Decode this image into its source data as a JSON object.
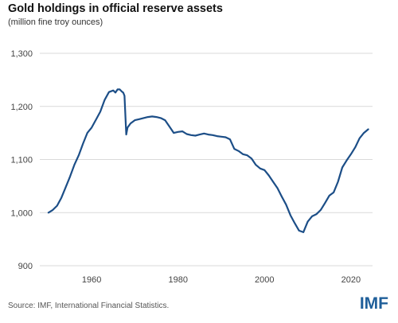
{
  "header": {
    "title": "Gold holdings in official reserve assets",
    "subtitle": "(million fine troy ounces)"
  },
  "footer": {
    "source": "Source: IMF, International Financial Statistics.",
    "logo": "IMF"
  },
  "colors": {
    "line": "#1c4e87",
    "grid": "#d9d9d9",
    "axis_text": "#444444",
    "logo": "#1f5f9a"
  },
  "chart_data": {
    "type": "line",
    "title": "Gold holdings in official reserve assets",
    "subtitle": "(million fine troy ounces)",
    "xlabel": "",
    "ylabel": "",
    "xlim": [
      1948,
      2025
    ],
    "ylim": [
      900,
      1300
    ],
    "y_ticks": [
      900,
      1000,
      1100,
      1200,
      1300
    ],
    "y_tick_labels": [
      "900",
      "1,000",
      "1,100",
      "1,200",
      "1,300"
    ],
    "x_ticks": [
      1960,
      1980,
      2000,
      2020
    ],
    "x_tick_labels": [
      "1960",
      "1980",
      "2000",
      "2020"
    ],
    "grid": "horizontal",
    "series": [
      {
        "x": [
          1950.0,
          1951.0,
          1952.0,
          1953.0,
          1954.0,
          1955.0,
          1956.0,
          1957.0,
          1958.0,
          1959.0,
          1960.0,
          1961.0,
          1962.0,
          1963.0,
          1964.0,
          1965.0,
          1965.5,
          1966.0,
          1966.5,
          1967.0,
          1967.3,
          1967.6,
          1968.0,
          1968.3,
          1969.0,
          1970.0,
          1971.0,
          1972.0,
          1973.0,
          1974.0,
          1975.0,
          1976.0,
          1977.0,
          1978.0,
          1979.0,
          1980.0,
          1981.0,
          1982.0,
          1983.0,
          1984.0,
          1985.0,
          1986.0,
          1987.0,
          1988.0,
          1989.0,
          1990.0,
          1991.0,
          1992.0,
          1993.0,
          1994.0,
          1995.0,
          1996.0,
          1997.0,
          1998.0,
          1999.0,
          2000.0,
          2001.0,
          2002.0,
          2003.0,
          2004.0,
          2005.0,
          2006.0,
          2007.0,
          2008.0,
          2009.0,
          2010.0,
          2011.0,
          2012.0,
          2013.0,
          2014.0,
          2015.0,
          2016.0,
          2017.0,
          2018.0,
          2019.0,
          2020.0,
          2021.0,
          2022.0,
          2023.0,
          2024.0
        ],
        "values": [
          1000,
          1005,
          1013,
          1028,
          1048,
          1068,
          1090,
          1108,
          1130,
          1150,
          1160,
          1175,
          1190,
          1212,
          1227,
          1230,
          1226,
          1232,
          1232,
          1228,
          1226,
          1220,
          1147,
          1160,
          1168,
          1174,
          1176,
          1178,
          1180,
          1181,
          1180,
          1178,
          1174,
          1162,
          1150,
          1152,
          1153,
          1148,
          1146,
          1145,
          1147,
          1149,
          1147,
          1146,
          1144,
          1143,
          1142,
          1138,
          1120,
          1116,
          1110,
          1108,
          1102,
          1090,
          1083,
          1080,
          1070,
          1058,
          1046,
          1030,
          1015,
          995,
          980,
          966,
          963,
          983,
          993,
          997,
          1005,
          1018,
          1032,
          1038,
          1058,
          1085,
          1098,
          1110,
          1123,
          1140,
          1150,
          1157
        ]
      }
    ]
  }
}
